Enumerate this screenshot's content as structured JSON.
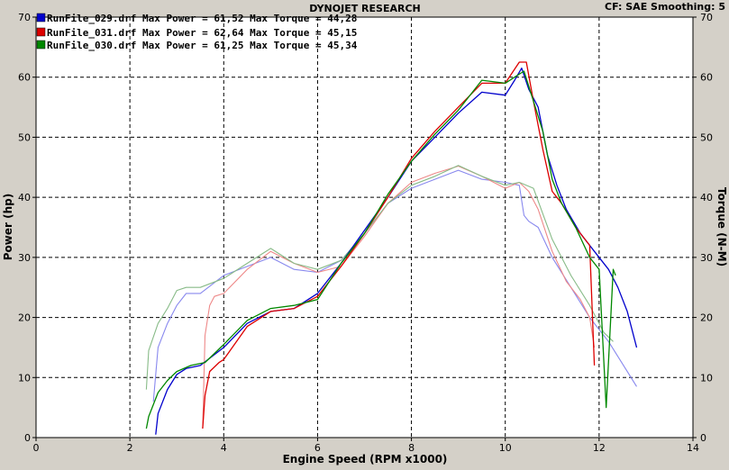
{
  "header": {
    "title": "DYNOJET RESEARCH",
    "settings": "CF: SAE  Smoothing: 5"
  },
  "legend": [
    {
      "text": "RunFile_029.drf Max Power = 61,52   Max Torque = 44,28",
      "color": "#0000cc"
    },
    {
      "text": "RunFile_031.drf Max Power = 62,64   Max Torque = 45,15",
      "color": "#dd0000"
    },
    {
      "text": "RunFile_030.drf Max Power = 61,25   Max Torque = 45,34",
      "color": "#008800"
    }
  ],
  "chart_data": {
    "type": "line",
    "title": "DYNOJET RESEARCH",
    "xlabel": "Engine Speed (RPM x1000)",
    "ylabel": "Power (hp)",
    "y2label": "Torque (N-M)",
    "xlim": [
      0,
      14
    ],
    "ylim": [
      0,
      70
    ],
    "x_ticks": [
      "0",
      "2",
      "4",
      "6",
      "8",
      "10",
      "12",
      "14"
    ],
    "y_ticks": [
      "0",
      "10",
      "20",
      "30",
      "40",
      "50",
      "60",
      "70"
    ],
    "grid": true,
    "legend_position": "top-left",
    "series": [
      {
        "name": "RunFile_029.drf",
        "metric": "power",
        "color": "#0000cc",
        "x": [
          2.55,
          2.6,
          2.8,
          3.0,
          3.2,
          3.5,
          4.0,
          4.5,
          5.0,
          5.5,
          6.0,
          6.5,
          7.0,
          7.5,
          8.0,
          8.5,
          9.0,
          9.5,
          10.0,
          10.2,
          10.35,
          10.5,
          10.7,
          10.9,
          11.1,
          11.3,
          11.6,
          11.9,
          12.2,
          12.4,
          12.6,
          12.8
        ],
        "y": [
          0.5,
          4,
          8,
          10.5,
          11.5,
          12,
          15,
          19,
          21,
          21.5,
          24,
          29,
          34.5,
          40,
          46,
          50,
          54,
          57.5,
          57,
          59.5,
          61.5,
          58,
          55,
          47,
          42,
          38,
          34,
          31,
          28,
          25,
          21,
          15
        ]
      },
      {
        "name": "RunFile_031.drf",
        "metric": "power",
        "color": "#dd0000",
        "x": [
          3.55,
          3.6,
          3.7,
          3.9,
          4.0,
          4.5,
          5.0,
          5.5,
          6.0,
          6.5,
          7.0,
          7.5,
          8.0,
          8.5,
          9.0,
          9.5,
          10.0,
          10.3,
          10.45,
          10.6,
          10.8,
          11.0,
          11.2,
          11.5,
          11.8,
          11.9
        ],
        "y": [
          1.5,
          7,
          11,
          12.5,
          13,
          18.5,
          21,
          21.5,
          23.5,
          28.5,
          34,
          40,
          46.5,
          51,
          55,
          59,
          59,
          62.5,
          62.5,
          56,
          48,
          41,
          39,
          35,
          32,
          12
        ]
      },
      {
        "name": "RunFile_030.drf",
        "metric": "power",
        "color": "#008800",
        "x": [
          2.35,
          2.4,
          2.6,
          2.8,
          3.0,
          3.3,
          3.6,
          4.0,
          4.5,
          5.0,
          5.5,
          6.0,
          6.5,
          7.0,
          7.5,
          8.0,
          8.5,
          9.0,
          9.5,
          10.0,
          10.2,
          10.4,
          10.6,
          10.8,
          11.0,
          11.2,
          11.5,
          11.8,
          12.0,
          12.15,
          12.3,
          12.35
        ],
        "y": [
          1.5,
          3.5,
          7.5,
          9.5,
          11,
          12,
          12.5,
          15.5,
          19.5,
          21.5,
          22,
          23,
          29,
          34,
          40.5,
          46,
          50.5,
          54.5,
          59.5,
          59,
          60,
          61,
          56,
          51,
          43,
          39,
          35,
          30,
          28,
          5,
          28,
          27
        ]
      },
      {
        "name": "RunFile_029.drf",
        "metric": "torque",
        "color": "#8888ee",
        "x": [
          2.5,
          2.6,
          2.8,
          3.0,
          3.2,
          3.5,
          4.0,
          4.5,
          5.0,
          5.5,
          6.0,
          6.5,
          7.0,
          7.5,
          8.0,
          8.5,
          9.0,
          9.5,
          10.0,
          10.3,
          10.4,
          10.5,
          10.7,
          11.0,
          11.4,
          11.8,
          12.2,
          12.6,
          12.8
        ],
        "y": [
          6,
          15,
          19,
          22,
          24,
          24,
          27,
          28.5,
          30,
          28,
          27.5,
          29.5,
          34,
          39,
          41.5,
          43,
          44.5,
          43,
          42.5,
          42,
          37,
          36,
          35,
          30,
          25,
          20,
          16,
          11,
          8.5
        ]
      },
      {
        "name": "RunFile_031.drf",
        "metric": "torque",
        "color": "#ee8888",
        "x": [
          3.55,
          3.6,
          3.7,
          3.8,
          4.0,
          4.5,
          5.0,
          5.5,
          6.0,
          6.5,
          7.0,
          7.5,
          8.0,
          8.5,
          9.0,
          9.5,
          10.0,
          10.3,
          10.5,
          10.7,
          11.0,
          11.3,
          11.6,
          11.8,
          11.9
        ],
        "y": [
          1.5,
          17,
          22,
          23.5,
          24,
          28,
          31,
          29,
          27.5,
          28.5,
          33.5,
          39,
          42.5,
          44,
          45.2,
          43.5,
          41.5,
          42.5,
          41,
          38,
          31,
          26,
          23,
          20,
          15
        ]
      },
      {
        "name": "RunFile_030.drf",
        "metric": "torque",
        "color": "#88bb88",
        "x": [
          2.35,
          2.4,
          2.6,
          2.8,
          3.0,
          3.2,
          3.5,
          4.0,
          4.5,
          5.0,
          5.5,
          6.0,
          6.5,
          7.0,
          7.5,
          8.0,
          8.5,
          9.0,
          9.5,
          10.0,
          10.3,
          10.6,
          11.0,
          11.4,
          11.8,
          12.1,
          12.3
        ],
        "y": [
          8,
          14.5,
          19,
          21.5,
          24.5,
          25,
          25,
          26.5,
          29,
          31.5,
          29,
          28,
          29.5,
          34,
          39,
          42,
          43.5,
          45.3,
          43.5,
          42,
          42.5,
          41.5,
          33,
          27,
          22,
          17.5,
          16
        ]
      }
    ]
  }
}
